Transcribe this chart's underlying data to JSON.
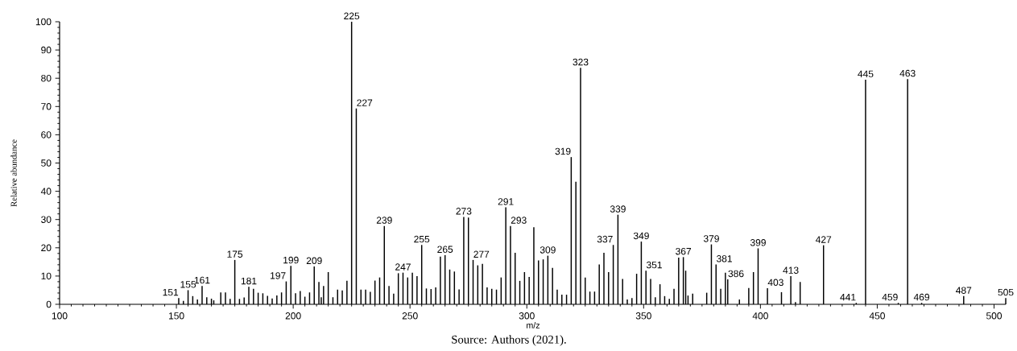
{
  "chart_data": {
    "type": "bar",
    "xlabel": "m/z",
    "ylabel": "Relative abundance",
    "color": "#000000",
    "xlim": [
      100,
      505
    ],
    "ylim": [
      0,
      100
    ],
    "xticks": [
      100,
      150,
      200,
      250,
      300,
      350,
      400,
      450,
      500
    ],
    "yticks": [
      0,
      10,
      20,
      30,
      40,
      50,
      60,
      70,
      80,
      90,
      100
    ],
    "x": [
      151,
      153,
      155,
      157,
      159,
      161,
      163,
      165,
      166,
      169,
      171,
      173,
      175,
      177,
      179,
      181,
      183,
      185,
      187,
      189,
      191,
      193,
      195,
      197,
      199,
      201,
      203,
      205,
      207,
      209,
      211,
      212,
      213,
      215,
      217,
      219,
      221,
      223,
      225,
      227,
      229,
      231,
      233,
      235,
      237,
      239,
      241,
      243,
      245,
      247,
      249,
      251,
      253,
      255,
      257,
      259,
      261,
      263,
      265,
      267,
      269,
      271,
      273,
      275,
      277,
      279,
      281,
      283,
      285,
      287,
      289,
      291,
      293,
      295,
      297,
      299,
      301,
      303,
      305,
      307,
      309,
      311,
      313,
      315,
      317,
      319,
      321,
      323,
      325,
      327,
      329,
      331,
      333,
      335,
      337,
      339,
      341,
      343,
      345,
      347,
      349,
      351,
      353,
      355,
      357,
      359,
      361,
      363,
      365,
      367,
      368,
      369,
      371,
      377,
      379,
      381,
      383,
      385,
      386,
      391,
      395,
      397,
      399,
      403,
      409,
      413,
      415,
      417,
      427,
      441,
      445,
      459,
      463,
      469,
      487,
      505
    ],
    "values": [
      2.2,
      1.2,
      5.0,
      2.9,
      1.7,
      6.5,
      2.5,
      2.0,
      1.4,
      4.2,
      4.2,
      1.9,
      15.7,
      1.9,
      2.4,
      6.2,
      5.5,
      4.1,
      3.9,
      3.0,
      2.1,
      3.1,
      4.2,
      8.1,
      13.6,
      3.9,
      4.7,
      2.7,
      4.2,
      13.4,
      7.9,
      2.5,
      6.5,
      11.4,
      2.5,
      5.2,
      4.9,
      8.3,
      100,
      69.3,
      5.2,
      5.2,
      4.4,
      8.4,
      9.5,
      27.7,
      6.5,
      3.8,
      11.0,
      11.2,
      9.5,
      11.2,
      10.0,
      21.0,
      5.6,
      5.4,
      6.0,
      16.9,
      17.4,
      12.3,
      11.6,
      5.3,
      30.9,
      30.7,
      15.7,
      13.8,
      14.3,
      6.0,
      5.5,
      5.2,
      9.5,
      34.3,
      27.7,
      18.2,
      8.3,
      11.4,
      9.7,
      27.3,
      15.5,
      15.9,
      17.2,
      12.9,
      5.2,
      3.4,
      3.4,
      52.1,
      43.4,
      83.7,
      9.5,
      4.5,
      4.5,
      14.1,
      18.2,
      11.4,
      21.0,
      31.7,
      9.0,
      1.7,
      2.2,
      10.8,
      22.2,
      11.9,
      9.0,
      2.5,
      7.1,
      2.9,
      1.9,
      5.5,
      16.5,
      16.7,
      11.9,
      3.1,
      3.8,
      4.1,
      21.2,
      14.1,
      5.5,
      11.2,
      8.8,
      1.7,
      5.8,
      11.4,
      19.8,
      5.7,
      4.3,
      10.0,
      0.8,
      7.9,
      20.9,
      0.5,
      79.5,
      0.5,
      79.7,
      0.5,
      2.9,
      2.2
    ],
    "annotations": [
      {
        "text": "151",
        "x": 151,
        "y": 2.2
      },
      {
        "text": "155",
        "x": 155,
        "y": 5.0
      },
      {
        "text": "161",
        "x": 161,
        "y": 6.5
      },
      {
        "text": "175",
        "x": 175,
        "y": 15.7
      },
      {
        "text": "181",
        "x": 181,
        "y": 6.2
      },
      {
        "text": "197",
        "x": 197,
        "y": 8.1
      },
      {
        "text": "199",
        "x": 199,
        "y": 13.6
      },
      {
        "text": "209",
        "x": 209,
        "y": 13.4
      },
      {
        "text": "225",
        "x": 225,
        "y": 100
      },
      {
        "text": "227",
        "x": 227,
        "y": 69.3
      },
      {
        "text": "239",
        "x": 239,
        "y": 27.7
      },
      {
        "text": "247",
        "x": 247,
        "y": 11.2
      },
      {
        "text": "255",
        "x": 255,
        "y": 21.0
      },
      {
        "text": "265",
        "x": 265,
        "y": 17.4
      },
      {
        "text": "273",
        "x": 273,
        "y": 30.9
      },
      {
        "text": "277",
        "x": 277,
        "y": 15.7
      },
      {
        "text": "291",
        "x": 291,
        "y": 34.3
      },
      {
        "text": "293",
        "x": 293,
        "y": 27.7
      },
      {
        "text": "309",
        "x": 309,
        "y": 17.2
      },
      {
        "text": "319",
        "x": 319,
        "y": 52.1
      },
      {
        "text": "323",
        "x": 323,
        "y": 83.7
      },
      {
        "text": "337",
        "x": 337,
        "y": 21.0
      },
      {
        "text": "339",
        "x": 339,
        "y": 31.7
      },
      {
        "text": "349",
        "x": 349,
        "y": 22.2
      },
      {
        "text": "351",
        "x": 351,
        "y": 11.9
      },
      {
        "text": "367",
        "x": 367,
        "y": 16.7
      },
      {
        "text": "379",
        "x": 379,
        "y": 21.2
      },
      {
        "text": "381",
        "x": 381,
        "y": 14.1
      },
      {
        "text": "386",
        "x": 386,
        "y": 8.8
      },
      {
        "text": "399",
        "x": 399,
        "y": 19.8
      },
      {
        "text": "403",
        "x": 403,
        "y": 5.7
      },
      {
        "text": "413",
        "x": 413,
        "y": 10.0
      },
      {
        "text": "427",
        "x": 427,
        "y": 20.9
      },
      {
        "text": "441",
        "x": 441,
        "y": 0.5
      },
      {
        "text": "445",
        "x": 445,
        "y": 79.5
      },
      {
        "text": "459",
        "x": 459,
        "y": 0.5
      },
      {
        "text": "463",
        "x": 463,
        "y": 79.7
      },
      {
        "text": "469",
        "x": 469,
        "y": 0.5
      },
      {
        "text": "487",
        "x": 487,
        "y": 2.9
      },
      {
        "text": "505",
        "x": 505,
        "y": 2.2
      },
      "Source: Authors (2021)."
    ]
  }
}
